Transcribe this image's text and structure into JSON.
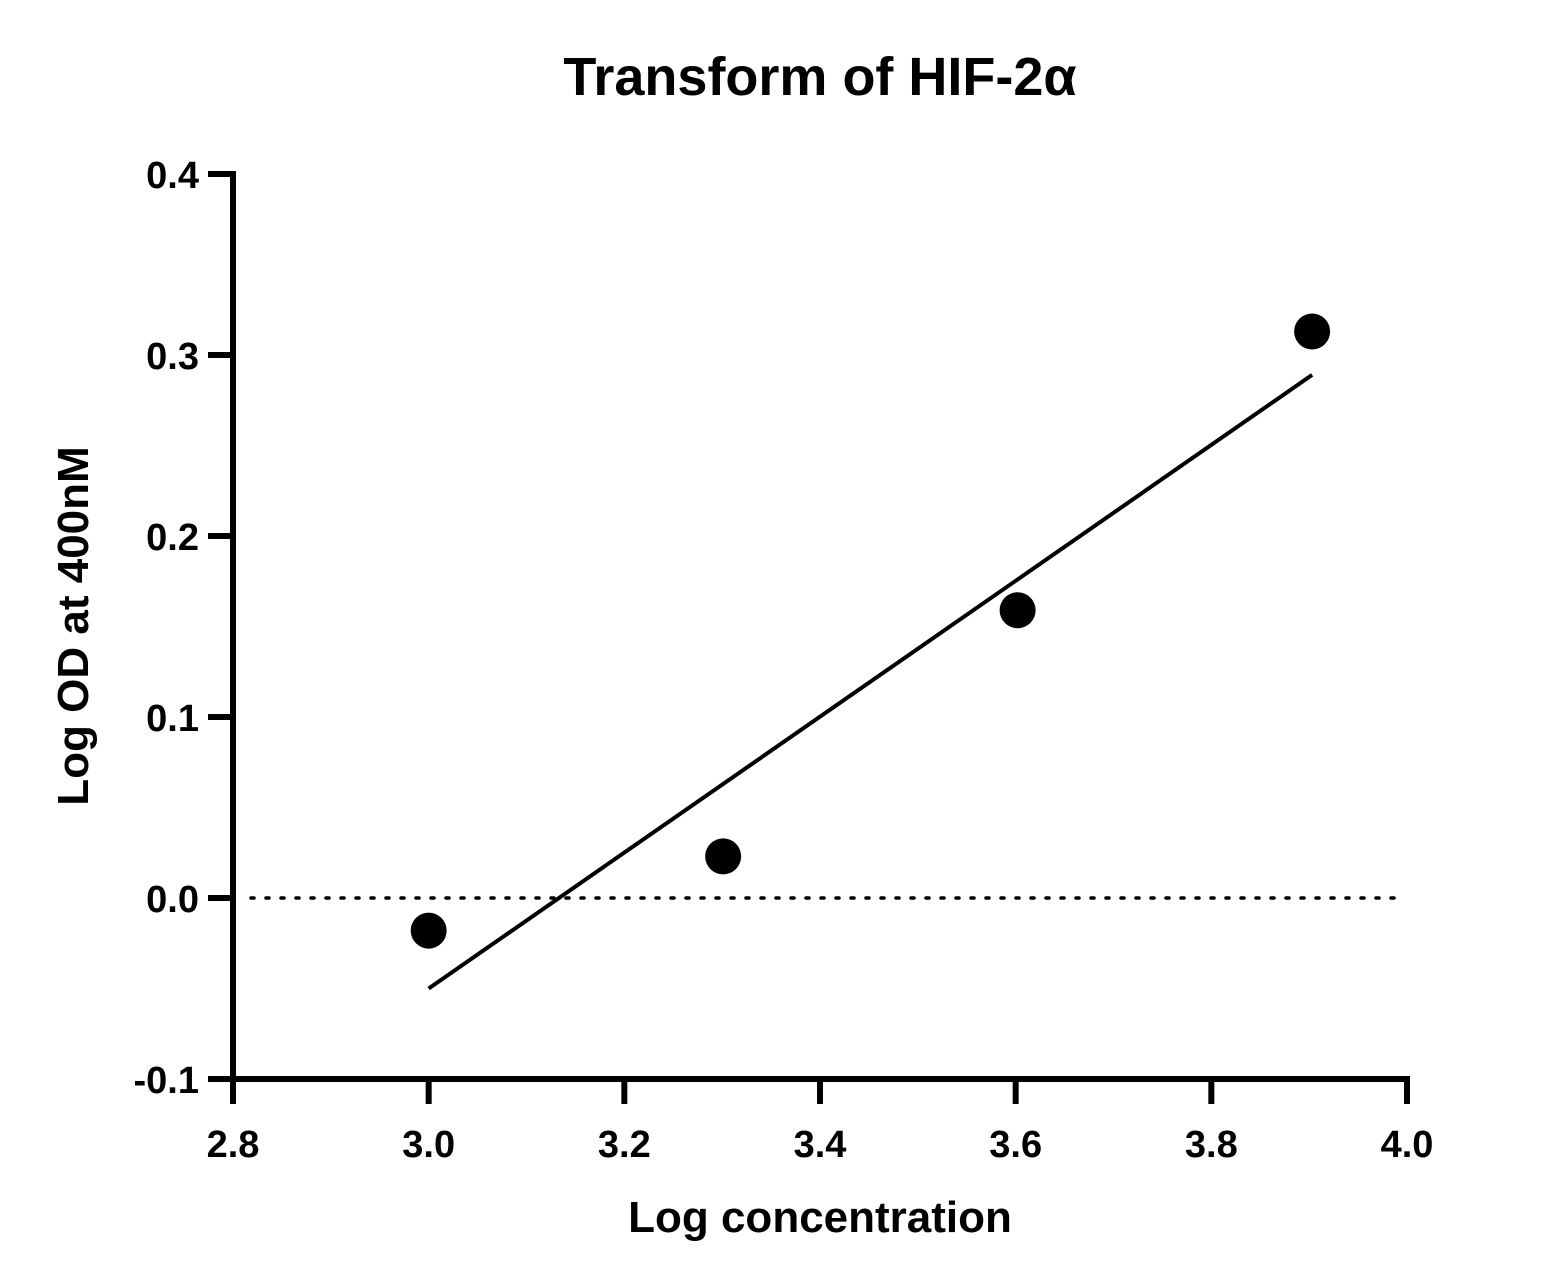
{
  "chart_data": {
    "type": "scatter",
    "title": "Transform of HIF-2α",
    "xlabel": "Log concentration",
    "ylabel": "Log OD at 400nM",
    "xlim": [
      2.8,
      4.0
    ],
    "ylim": [
      -0.1,
      0.4
    ],
    "x_ticks": [
      "2.8",
      "3.0",
      "3.2",
      "3.4",
      "3.6",
      "3.8",
      "4.0"
    ],
    "y_ticks": [
      "-0.1",
      "0.0",
      "0.1",
      "0.2",
      "0.3",
      "0.4"
    ],
    "grid": false,
    "legend": "none",
    "series": [
      {
        "points": [
          {
            "x": 3.0,
            "y": -0.018
          },
          {
            "x": 3.301,
            "y": 0.023
          },
          {
            "x": 3.602,
            "y": 0.159
          },
          {
            "x": 3.903,
            "y": 0.313
          }
        ],
        "color": "#000000"
      }
    ],
    "fit_line": {
      "type": "linear",
      "from": {
        "x": 3.0,
        "y": -0.05
      },
      "to": {
        "x": 3.903,
        "y": 0.289
      },
      "color": "#000000"
    },
    "reference_line": {
      "y": 0.0,
      "style": "dotted",
      "color": "#000000"
    }
  }
}
